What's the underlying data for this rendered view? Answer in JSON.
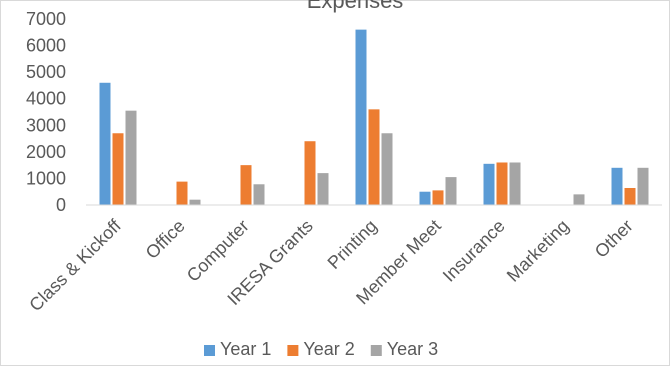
{
  "chart_data": {
    "type": "bar",
    "title": "Expenses",
    "categories": [
      "Class & Kickoff",
      "Office",
      "Computer",
      "IRESA Grants",
      "Printing",
      "Member Meet",
      "Insurance",
      "Marketing",
      "Other"
    ],
    "series": [
      {
        "name": "Year 1",
        "color": "#5b9bd5",
        "values": [
          4600,
          0,
          0,
          0,
          6600,
          500,
          1550,
          0,
          1400
        ]
      },
      {
        "name": "Year 2",
        "color": "#ed7d31",
        "values": [
          2700,
          880,
          1500,
          2400,
          3600,
          550,
          1600,
          0,
          640
        ]
      },
      {
        "name": "Year 3",
        "color": "#a5a5a5",
        "values": [
          3550,
          200,
          780,
          1200,
          2700,
          1050,
          1600,
          400,
          1400
        ]
      }
    ],
    "yticks": [
      "0",
      "1000",
      "2000",
      "3000",
      "4000",
      "5000",
      "6000",
      "7000"
    ],
    "ylim": [
      0,
      7000
    ],
    "grid": false,
    "legend_position": "bottom"
  }
}
